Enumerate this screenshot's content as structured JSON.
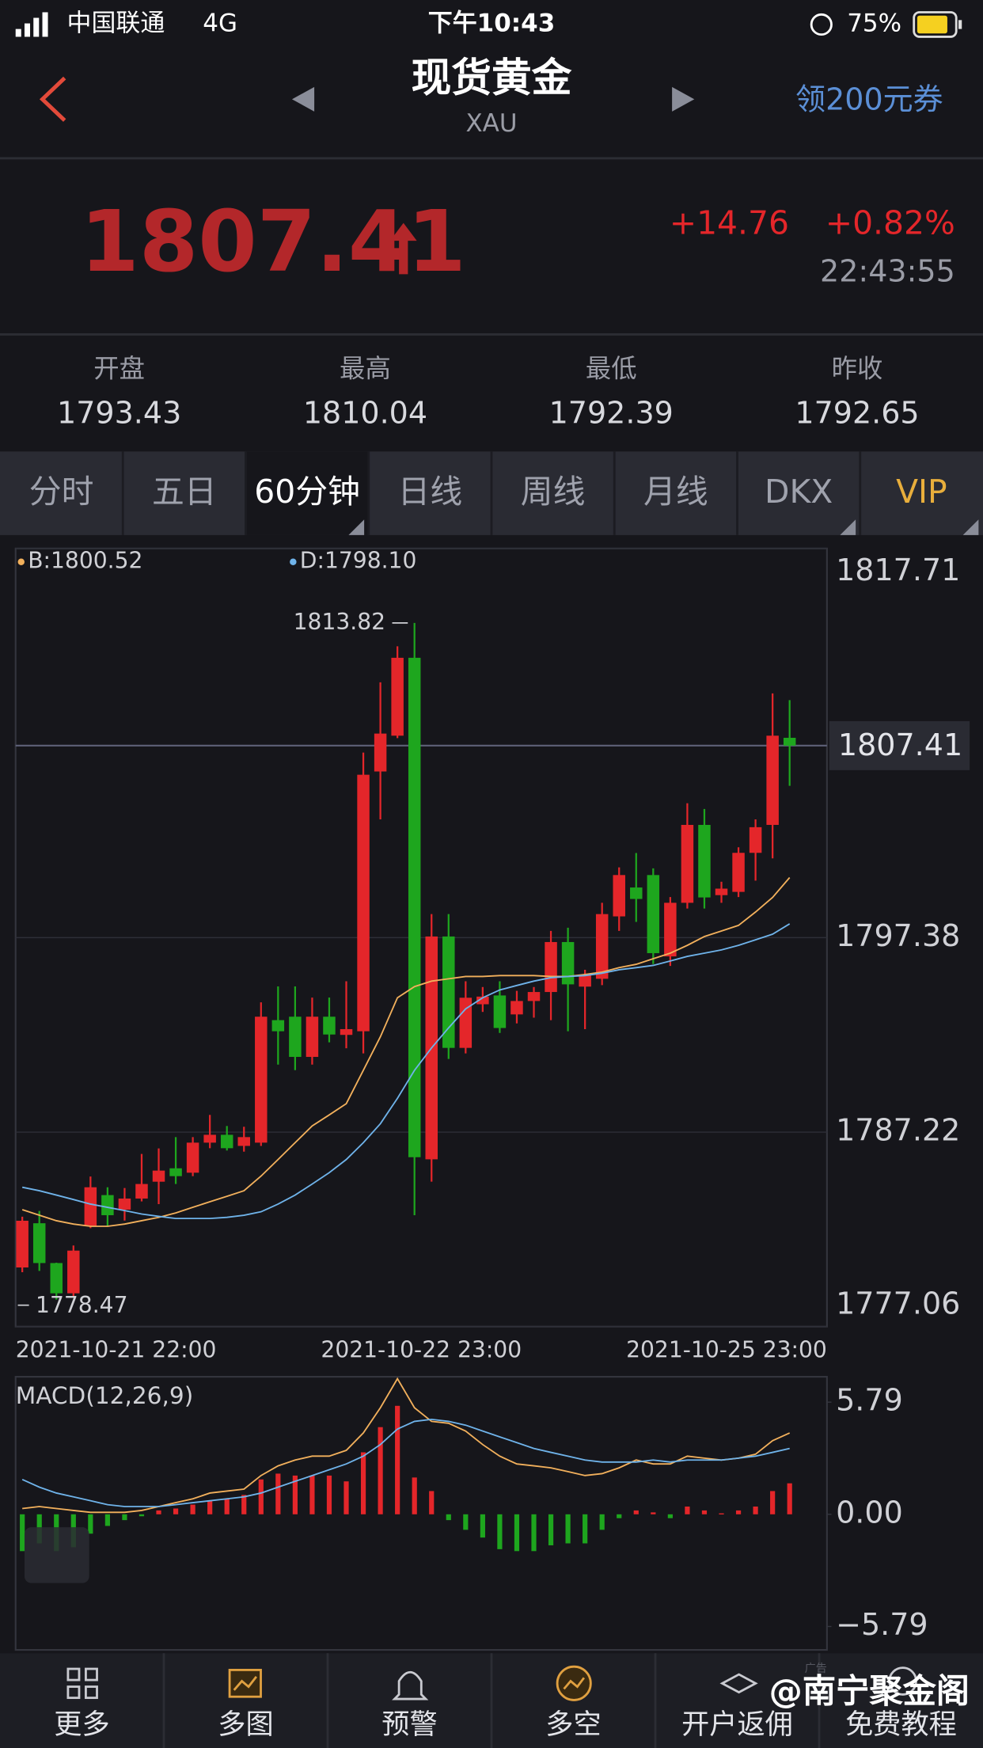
{
  "status_bar": {
    "carrier": "中国联通",
    "network": "4G",
    "time": "下午10:43",
    "battery": "75%"
  },
  "header": {
    "title": "现货黄金",
    "symbol": "XAU",
    "coupon": "领200元券"
  },
  "quote": {
    "price": "1807.41",
    "change": "+14.76",
    "change_pct": "+0.82%",
    "time": "22:43:55"
  },
  "stats": [
    {
      "label": "开盘",
      "value": "1793.43"
    },
    {
      "label": "最高",
      "value": "1810.04"
    },
    {
      "label": "最低",
      "value": "1792.39"
    },
    {
      "label": "昨收",
      "value": "1792.65"
    }
  ],
  "tabs": [
    "分时",
    "五日",
    "60分钟",
    "日线",
    "周线",
    "月线",
    "DKX",
    "VIP"
  ],
  "chart_data": [
    {
      "type": "candlestick",
      "up_color": "#e4262a",
      "down_color": "#1ea61e",
      "ylim": [
        1777.06,
        1817.71
      ],
      "yticks": [
        1817.71,
        1797.38,
        1787.22,
        1777.06
      ],
      "grid": true,
      "price_line": 1807.41,
      "annotations": {
        "max": 1813.82,
        "min": 1778.47
      },
      "x_labels": [
        "2021-10-21 22:00",
        "2021-10-22 23:00",
        "2021-10-25 23:00"
      ],
      "open": [
        1780.15,
        1782.46,
        1780.38,
        1778.8,
        1782.3,
        1783.93,
        1783.17,
        1783.75,
        1784.63,
        1785.33,
        1785.1,
        1786.67,
        1787.08,
        1786.5,
        1786.67,
        1793.07,
        1793.25,
        1791.15,
        1793.25,
        1792.3,
        1792.49,
        1806.06,
        1807.93,
        1812.0,
        1785.8,
        1797.44,
        1791.62,
        1793.9,
        1794.36,
        1793.37,
        1794.07,
        1794.54,
        1797.15,
        1794.82,
        1795.23,
        1798.49,
        1800.0,
        1800.65,
        1796.4,
        1799.2,
        1803.27,
        1799.6,
        1799.77,
        1801.81,
        1803.27,
        1807.82
      ],
      "high": [
        1782.8,
        1783.1,
        1780.4,
        1781.3,
        1784.9,
        1784.34,
        1784.3,
        1786.08,
        1786.37,
        1786.96,
        1786.96,
        1788.12,
        1787.54,
        1787.5,
        1794.0,
        1794.83,
        1794.83,
        1794.25,
        1794.25,
        1795.1,
        1807.05,
        1810.72,
        1812.6,
        1813.82,
        1798.61,
        1798.61,
        1795.1,
        1794.8,
        1795.1,
        1794.6,
        1794.8,
        1797.73,
        1797.9,
        1795.7,
        1799.2,
        1801.05,
        1801.8,
        1801.0,
        1799.5,
        1804.4,
        1804.1,
        1800.3,
        1802.1,
        1803.56,
        1810.14,
        1809.79
      ],
      "low": [
        1779.9,
        1779.97,
        1778.47,
        1778.6,
        1782.2,
        1782.3,
        1782.6,
        1783.6,
        1783.46,
        1784.51,
        1784.92,
        1786.38,
        1786.26,
        1786.2,
        1786.5,
        1790.75,
        1790.46,
        1790.75,
        1791.91,
        1791.6,
        1791.33,
        1803.56,
        1807.8,
        1782.88,
        1784.63,
        1791.04,
        1791.33,
        1793.5,
        1792.4,
        1792.9,
        1793.2,
        1793.07,
        1792.49,
        1792.6,
        1794.9,
        1797.73,
        1798.2,
        1796.0,
        1795.9,
        1798.9,
        1798.9,
        1799.2,
        1799.5,
        1800.36,
        1801.52,
        1805.31
      ],
      "close": [
        1782.59,
        1780.38,
        1778.8,
        1781.03,
        1784.34,
        1782.88,
        1783.75,
        1784.51,
        1785.21,
        1784.92,
        1786.67,
        1787.08,
        1786.38,
        1786.96,
        1793.25,
        1792.49,
        1791.15,
        1793.25,
        1792.32,
        1792.6,
        1805.89,
        1808.04,
        1812.0,
        1785.91,
        1797.44,
        1791.62,
        1794.24,
        1794.3,
        1792.66,
        1794.07,
        1794.54,
        1797.15,
        1794.94,
        1795.41,
        1798.61,
        1800.65,
        1799.4,
        1796.57,
        1799.2,
        1803.27,
        1799.48,
        1799.94,
        1801.81,
        1803.15,
        1807.93,
        1807.41
      ],
      "series": [
        {
          "name": "B:1800.52",
          "color": "#f2b05c",
          "values": [
            1783.17,
            1782.88,
            1782.59,
            1782.42,
            1782.3,
            1782.3,
            1782.42,
            1782.59,
            1782.77,
            1783.0,
            1783.29,
            1783.58,
            1783.87,
            1784.16,
            1784.92,
            1785.79,
            1786.67,
            1787.54,
            1788.12,
            1788.71,
            1790.45,
            1792.2,
            1794.24,
            1794.82,
            1795.11,
            1795.23,
            1795.35,
            1795.35,
            1795.4,
            1795.4,
            1795.4,
            1795.35,
            1795.35,
            1795.46,
            1795.58,
            1795.81,
            1795.99,
            1796.28,
            1796.57,
            1796.98,
            1797.44,
            1797.73,
            1798.02,
            1798.72,
            1799.48,
            1800.52
          ]
        },
        {
          "name": "D:1798.10",
          "color": "#6fb3ea",
          "values": [
            1784.34,
            1784.16,
            1783.93,
            1783.7,
            1783.46,
            1783.29,
            1783.12,
            1782.94,
            1782.82,
            1782.71,
            1782.71,
            1782.71,
            1782.77,
            1782.88,
            1783.06,
            1783.46,
            1783.93,
            1784.51,
            1785.1,
            1785.79,
            1786.67,
            1787.66,
            1788.99,
            1790.45,
            1791.62,
            1792.67,
            1793.66,
            1794.24,
            1794.65,
            1794.88,
            1795.11,
            1795.29,
            1795.35,
            1795.4,
            1795.52,
            1795.7,
            1795.81,
            1795.93,
            1796.16,
            1796.4,
            1796.57,
            1796.74,
            1796.98,
            1797.27,
            1797.56,
            1798.1
          ]
        }
      ]
    },
    {
      "type": "macd",
      "title": "MACD(12,26,9)",
      "up_color": "#e4262a",
      "down_color": "#1ea61e",
      "ylim": [
        -7,
        7.1
      ],
      "yticks": [
        5.79,
        {
          "value": 0,
          "label": "0.00"
        },
        {
          "value": -5.79,
          "label": "−5.79"
        }
      ],
      "histogram": [
        -1.9,
        -1.5,
        -1.9,
        -1.7,
        -1.0,
        -0.6,
        -0.3,
        -0.1,
        0.2,
        0.3,
        0.5,
        0.7,
        0.8,
        1.0,
        1.8,
        2.1,
        2.0,
        2.0,
        2.0,
        1.7,
        3.2,
        4.5,
        5.6,
        1.9,
        1.2,
        -0.3,
        -0.8,
        -1.2,
        -1.8,
        -1.9,
        -1.9,
        -1.6,
        -1.5,
        -1.5,
        -0.8,
        -0.2,
        0.2,
        0.1,
        -0.2,
        0.4,
        0.2,
        0.05,
        0.2,
        0.4,
        1.2,
        1.6
      ],
      "lines": [
        {
          "color": "#f2b05c",
          "values": [
            0.3,
            0.4,
            0.3,
            0.2,
            0.1,
            0.1,
            0.1,
            0.2,
            0.4,
            0.6,
            0.8,
            1.1,
            1.2,
            1.3,
            2.0,
            2.5,
            2.8,
            3.0,
            3.0,
            3.3,
            4.2,
            5.5,
            7.0,
            5.5,
            4.8,
            4.7,
            4.3,
            3.6,
            3.0,
            2.6,
            2.5,
            2.4,
            2.2,
            2.0,
            2.1,
            2.4,
            2.8,
            2.6,
            2.6,
            3.0,
            2.9,
            2.8,
            2.9,
            3.1,
            3.8,
            4.2
          ]
        },
        {
          "color": "#6fb3ea",
          "values": [
            1.8,
            1.4,
            1.1,
            0.9,
            0.7,
            0.5,
            0.4,
            0.4,
            0.4,
            0.5,
            0.6,
            0.7,
            0.8,
            0.9,
            1.1,
            1.4,
            1.7,
            2.0,
            2.3,
            2.6,
            3.0,
            3.6,
            4.4,
            4.8,
            4.9,
            4.8,
            4.6,
            4.3,
            4.0,
            3.7,
            3.4,
            3.2,
            3.0,
            2.8,
            2.7,
            2.7,
            2.7,
            2.8,
            2.7,
            2.8,
            2.8,
            2.8,
            2.9,
            3.0,
            3.2,
            3.4
          ]
        }
      ]
    }
  ],
  "nav": [
    "更多",
    "多图",
    "预警",
    "多空",
    "开户返佣",
    "免费教程"
  ],
  "ad_label": "广告",
  "watermark": "@南宁聚金阁"
}
